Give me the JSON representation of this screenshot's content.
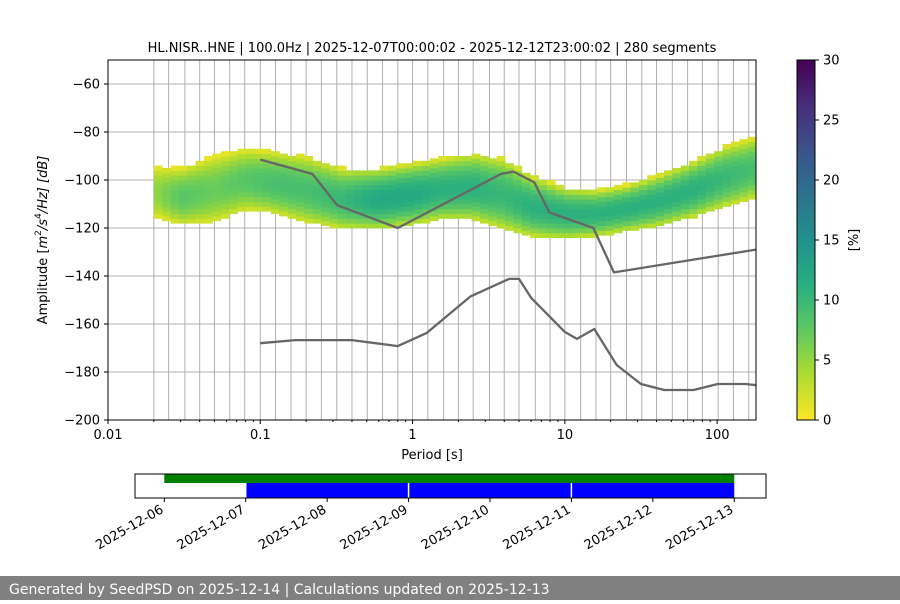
{
  "chart_data": [
    {
      "type": "heatmap",
      "title": "HL.NISR..HNE | 100.0Hz | 2025-12-07T00:00:02 - 2025-12-12T23:00:02 | 280 segments",
      "xlabel": "Period [s]",
      "ylabel_parts": {
        "prefix": "Amplitude [",
        "m": "m",
        "exp2": "2",
        "s": "/s",
        "exp4": "4",
        "hz": "/Hz] [dB]"
      },
      "xscale": "log",
      "xlim": [
        0.01,
        180
      ],
      "ylim": [
        -200,
        -50
      ],
      "xticks": [
        {
          "v": 0.01,
          "label": "0.01"
        },
        {
          "v": 0.1,
          "label": "0.1"
        },
        {
          "v": 1,
          "label": "1"
        },
        {
          "v": 10,
          "label": "10"
        },
        {
          "v": 100,
          "label": "100"
        }
      ],
      "yticks": [
        {
          "v": -60,
          "label": "−60"
        },
        {
          "v": -80,
          "label": "−80"
        },
        {
          "v": -100,
          "label": "−100"
        },
        {
          "v": -120,
          "label": "−120"
        },
        {
          "v": -140,
          "label": "−140"
        },
        {
          "v": -160,
          "label": "−160"
        },
        {
          "v": -180,
          "label": "−180"
        },
        {
          "v": -200,
          "label": "−200"
        }
      ],
      "grid_periods": [
        0.02,
        0.025,
        0.032,
        0.04,
        0.05,
        0.063,
        0.079,
        0.1,
        0.126,
        0.159,
        0.2,
        0.252,
        0.318,
        0.4,
        0.504,
        0.635,
        0.8,
        1.0,
        1.26,
        1.6,
        2.0,
        2.5,
        3.2,
        4.0,
        5.0,
        6.4,
        8.0,
        10.0,
        12.7,
        16.0,
        20.0,
        25.4,
        32.0,
        40.0,
        50.8,
        64.0,
        80.0,
        101.6,
        128.0,
        161.3
      ],
      "grid_y": true,
      "colormap": "viridis",
      "colorbar": {
        "label": "[%]",
        "range": [
          0,
          30
        ],
        "ticks": [
          {
            "v": 0,
            "label": "0"
          },
          {
            "v": 5,
            "label": "5"
          },
          {
            "v": 10,
            "label": "10"
          },
          {
            "v": 15,
            "label": "15"
          },
          {
            "v": 20,
            "label": "20"
          },
          {
            "v": 25,
            "label": "25"
          },
          {
            "v": 30,
            "label": "30"
          }
        ]
      },
      "psd_bands": [
        {
          "x": 0.02,
          "center": -105,
          "half_width": 10,
          "peak": 5
        },
        {
          "x": 0.03,
          "center": -107,
          "half_width": 11,
          "peak": 8
        },
        {
          "x": 0.05,
          "center": -104,
          "half_width": 13,
          "peak": 7
        },
        {
          "x": 0.08,
          "center": -100,
          "half_width": 12,
          "peak": 8
        },
        {
          "x": 0.12,
          "center": -101,
          "half_width": 12,
          "peak": 9
        },
        {
          "x": 0.2,
          "center": -104,
          "half_width": 13,
          "peak": 9
        },
        {
          "x": 0.35,
          "center": -108,
          "half_width": 12,
          "peak": 10
        },
        {
          "x": 0.6,
          "center": -108,
          "half_width": 12,
          "peak": 12
        },
        {
          "x": 1.0,
          "center": -106,
          "half_width": 12,
          "peak": 12
        },
        {
          "x": 1.5,
          "center": -104,
          "half_width": 12,
          "peak": 11
        },
        {
          "x": 2.5,
          "center": -103,
          "half_width": 13,
          "peak": 11
        },
        {
          "x": 4.0,
          "center": -106,
          "half_width": 14,
          "peak": 10
        },
        {
          "x": 6.0,
          "center": -111,
          "half_width": 12,
          "peak": 11
        },
        {
          "x": 10.0,
          "center": -114,
          "half_width": 10,
          "peak": 11
        },
        {
          "x": 16.0,
          "center": -114,
          "half_width": 9,
          "peak": 11
        },
        {
          "x": 25.0,
          "center": -112,
          "half_width": 9,
          "peak": 11
        },
        {
          "x": 40.0,
          "center": -109,
          "half_width": 10,
          "peak": 11
        },
        {
          "x": 70.0,
          "center": -104,
          "half_width": 11,
          "peak": 11
        },
        {
          "x": 110.0,
          "center": -99,
          "half_width": 12,
          "peak": 10
        },
        {
          "x": 180.0,
          "center": -95,
          "half_width": 12,
          "peak": 9
        }
      ],
      "series": [
        {
          "style": "noise-model-high",
          "color": "#666666",
          "points": [
            [
              0.1,
              -91.5
            ],
            [
              0.22,
              -97.5
            ],
            [
              0.32,
              -110.5
            ],
            [
              0.8,
              -120
            ],
            [
              3.8,
              -97.5
            ],
            [
              4.6,
              -96.5
            ],
            [
              6.3,
              -101
            ],
            [
              7.9,
              -113.5
            ],
            [
              15.4,
              -120
            ],
            [
              21,
              -138.5
            ],
            [
              180,
              -129
            ]
          ]
        },
        {
          "style": "noise-model-low",
          "color": "#666666",
          "points": [
            [
              0.1,
              -168
            ],
            [
              0.17,
              -166.7
            ],
            [
              0.4,
              -166.7
            ],
            [
              0.8,
              -169.2
            ],
            [
              1.24,
              -163.7
            ],
            [
              2.4,
              -148.5
            ],
            [
              4.3,
              -141.2
            ],
            [
              5.0,
              -141.2
            ],
            [
              6.0,
              -149.1
            ],
            [
              10,
              -163.3
            ],
            [
              12,
              -166.2
            ],
            [
              15.6,
              -162.1
            ],
            [
              21.9,
              -177.1
            ],
            [
              31.6,
              -185
            ],
            [
              45,
              -187.5
            ],
            [
              70,
              -187.5
            ],
            [
              101,
              -185
            ],
            [
              154,
              -185
            ],
            [
              180,
              -185.5
            ]
          ]
        }
      ]
    },
    {
      "type": "timeline",
      "xlim": [
        "2025-12-06",
        "2025-12-13"
      ],
      "tick_labels": [
        "2025-12-06",
        "2025-12-07",
        "2025-12-08",
        "2025-12-09",
        "2025-12-10",
        "2025-12-11",
        "2025-12-12",
        "2025-12-13"
      ],
      "available_data": {
        "color": "#008000",
        "start": "2025-12-06",
        "end": "2025-12-13"
      },
      "processed_segments": {
        "color": "#0000ff",
        "ranges": [
          [
            "2025-12-07",
            "2025-12-09"
          ],
          [
            "2025-12-09",
            "2025-12-11"
          ],
          [
            "2025-12-11",
            "2025-12-13"
          ]
        ]
      }
    }
  ],
  "footer": {
    "text": "Generated by SeedPSD on 2025-12-14 | Calculations updated on 2025-12-13"
  }
}
